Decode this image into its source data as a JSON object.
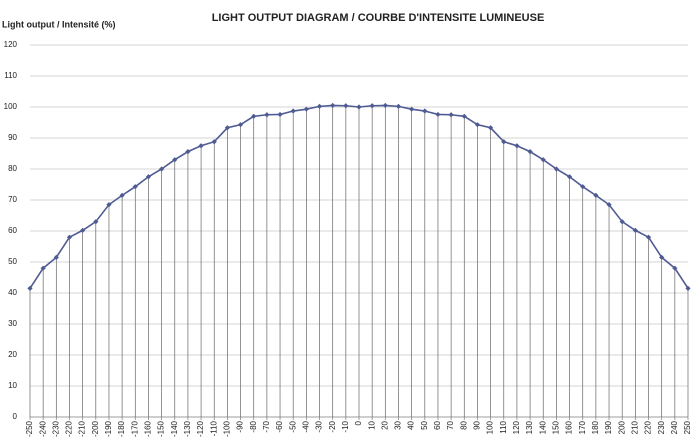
{
  "chart_data": {
    "type": "line",
    "title": "LIGHT OUTPUT DIAGRAM / COURBE D'INTENSITE LUMINEUSE",
    "y_label": "Light output / Intensité (%)",
    "x": [
      -250,
      -240,
      -230,
      -220,
      -210,
      -200,
      -190,
      -180,
      -170,
      -160,
      -150,
      -140,
      -130,
      -120,
      -110,
      -100,
      -90,
      -80,
      -70,
      -60,
      -50,
      -40,
      -30,
      -20,
      -10,
      0,
      10,
      20,
      30,
      40,
      50,
      60,
      70,
      80,
      90,
      100,
      110,
      120,
      130,
      140,
      150,
      160,
      170,
      180,
      190,
      200,
      210,
      220,
      230,
      240,
      250
    ],
    "series": [
      {
        "color": "#4f5b93",
        "values": [
          41.5,
          48,
          51.5,
          58,
          60.2,
          63,
          68.5,
          71.5,
          74.3,
          77.5,
          80,
          83,
          85.6,
          87.5,
          88.8,
          93.3,
          94.3,
          97,
          97.5,
          97.6,
          98.7,
          99.3,
          100.2,
          100.5,
          100.4,
          100,
          100.4,
          100.5,
          100.2,
          99.3,
          98.7,
          97.6,
          97.5,
          97,
          94.3,
          93.3,
          88.8,
          87.5,
          85.6,
          83,
          80,
          77.5,
          74.3,
          71.5,
          68.5,
          63,
          60.2,
          58,
          51.5,
          48,
          41.5
        ]
      }
    ],
    "xlim": [
      -250,
      250
    ],
    "xticks": [
      -250,
      -240,
      -230,
      -220,
      -210,
      -200,
      -190,
      -180,
      -170,
      -160,
      -150,
      -140,
      -130,
      -120,
      -110,
      -100,
      -90,
      -80,
      -70,
      -60,
      -50,
      -40,
      -30,
      -20,
      -10,
      0,
      10,
      20,
      30,
      40,
      50,
      60,
      70,
      80,
      90,
      100,
      110,
      120,
      130,
      140,
      150,
      160,
      170,
      180,
      190,
      200,
      210,
      220,
      230,
      240,
      250
    ],
    "ylim": [
      0,
      120
    ],
    "yticks": [
      0,
      10,
      20,
      30,
      40,
      50,
      60,
      70,
      80,
      90,
      100,
      110,
      120
    ],
    "grid": true,
    "drop_lines": true
  }
}
